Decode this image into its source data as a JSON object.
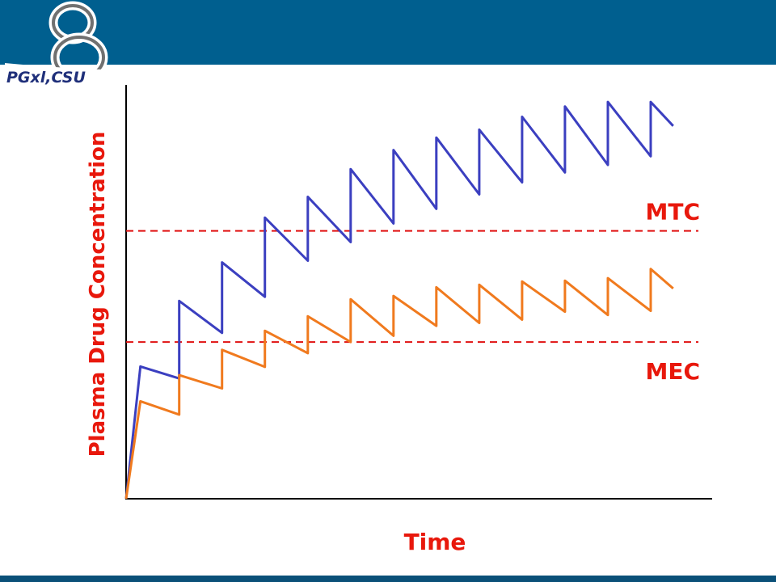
{
  "logo": {
    "text": "PGxl,CSU"
  },
  "colors": {
    "header": "#005f8f",
    "footer": "#0a5078",
    "accent_text": "#e8180c",
    "series_high": "#3b3fc0",
    "series_low": "#f07a1e",
    "reference_line": "#e01010"
  },
  "chart_data": {
    "type": "line",
    "title": "",
    "xlabel": "Time",
    "ylabel": "Plasma Drug Concentration",
    "xlim": [
      0,
      13
    ],
    "ylim": [
      0,
      100
    ],
    "grid": false,
    "axis_ticks": false,
    "reference_lines": [
      {
        "label": "MTC",
        "y": 64.6
      },
      {
        "label": "MEC",
        "y": 37.8
      }
    ],
    "series": [
      {
        "points": [
          [
            0,
            0
          ],
          [
            0.35,
            31.9
          ],
          [
            1.3,
            29.0
          ],
          [
            1.3,
            47.7
          ],
          [
            2.35,
            40.0
          ],
          [
            2.35,
            57.0
          ],
          [
            3.4,
            48.7
          ],
          [
            3.4,
            67.8
          ],
          [
            4.45,
            57.4
          ],
          [
            4.45,
            72.8
          ],
          [
            5.5,
            61.9
          ],
          [
            5.5,
            79.5
          ],
          [
            6.55,
            66.4
          ],
          [
            6.55,
            84.1
          ],
          [
            7.6,
            69.9
          ],
          [
            7.6,
            87.1
          ],
          [
            8.65,
            73.4
          ],
          [
            8.65,
            89.0
          ],
          [
            9.7,
            76.3
          ],
          [
            9.7,
            92.1
          ],
          [
            10.75,
            78.7
          ],
          [
            10.75,
            94.6
          ],
          [
            11.8,
            80.5
          ],
          [
            11.8,
            95.7
          ],
          [
            12.85,
            82.6
          ],
          [
            12.85,
            95.7
          ],
          [
            13.4,
            89.9
          ]
        ]
      },
      {
        "points": [
          [
            0,
            0
          ],
          [
            0.35,
            23.5
          ],
          [
            1.3,
            20.3
          ],
          [
            1.3,
            29.8
          ],
          [
            2.35,
            26.6
          ],
          [
            2.35,
            35.9
          ],
          [
            3.4,
            31.8
          ],
          [
            3.4,
            40.5
          ],
          [
            4.45,
            35.1
          ],
          [
            4.45,
            44.0
          ],
          [
            5.5,
            37.8
          ],
          [
            5.5,
            48.1
          ],
          [
            6.55,
            39.3
          ],
          [
            6.55,
            48.9
          ],
          [
            7.6,
            41.7
          ],
          [
            7.6,
            51.0
          ],
          [
            8.65,
            42.4
          ],
          [
            8.65,
            51.6
          ],
          [
            9.7,
            43.2
          ],
          [
            9.7,
            52.4
          ],
          [
            10.75,
            45.1
          ],
          [
            10.75,
            52.6
          ],
          [
            11.8,
            44.3
          ],
          [
            11.8,
            53.2
          ],
          [
            12.85,
            45.3
          ],
          [
            12.85,
            55.4
          ],
          [
            13.4,
            50.7
          ]
        ]
      }
    ]
  }
}
